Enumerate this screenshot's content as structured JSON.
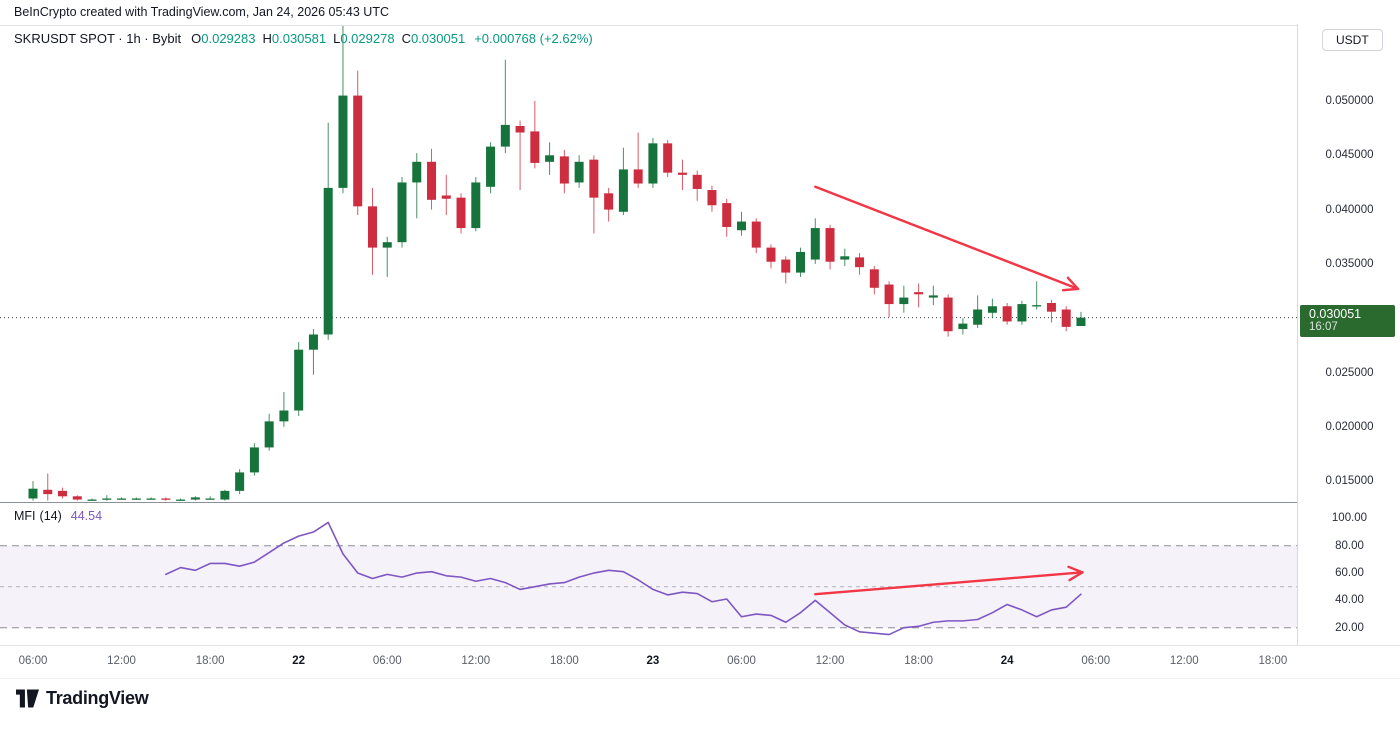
{
  "attribution": "BeInCrypto created with TradingView.com, Jan 24, 2026 05:43 UTC",
  "legend": {
    "symbol": "SKRUSDT SPOT · 1h · Bybit",
    "ohlc": [
      {
        "label": "O",
        "value": "0.029283"
      },
      {
        "label": "H",
        "value": "0.030581"
      },
      {
        "label": "L",
        "value": "0.029278"
      },
      {
        "label": "C",
        "value": "0.030051"
      }
    ],
    "change": "+0.000768 (+2.62%)"
  },
  "price_axis": {
    "currency": "USDT",
    "labels": [
      "0.050000",
      "0.045000",
      "0.040000",
      "0.035000",
      "0.025000",
      "0.020000",
      "0.015000"
    ],
    "label_values": [
      0.05,
      0.045,
      0.04,
      0.035,
      0.025,
      0.02,
      0.015
    ],
    "last_price_label": "0.030051",
    "countdown": "16:07"
  },
  "mfi_pane": {
    "title": "MFI",
    "params": "(14)",
    "value": "44.54",
    "axis_labels": [
      "100.00",
      "80.00",
      "60.00",
      "40.00",
      "20.00"
    ],
    "axis_values": [
      100,
      80,
      60,
      40,
      20
    ]
  },
  "time_axis": [
    {
      "label": "06:00",
      "bold": false
    },
    {
      "label": "12:00",
      "bold": false
    },
    {
      "label": "18:00",
      "bold": false
    },
    {
      "label": "22",
      "bold": true
    },
    {
      "label": "06:00",
      "bold": false
    },
    {
      "label": "12:00",
      "bold": false
    },
    {
      "label": "18:00",
      "bold": false
    },
    {
      "label": "23",
      "bold": true
    },
    {
      "label": "06:00",
      "bold": false
    },
    {
      "label": "12:00",
      "bold": false
    },
    {
      "label": "18:00",
      "bold": false
    },
    {
      "label": "24",
      "bold": true
    },
    {
      "label": "06:00",
      "bold": false
    },
    {
      "label": "12:00",
      "bold": false
    },
    {
      "label": "18:00",
      "bold": false
    }
  ],
  "footer_brand": "TradingView",
  "colors": {
    "up": "#15733b",
    "down": "#cd2d3e",
    "legend_value": "#089981",
    "mfi_line": "#7e57c2",
    "arrow": "#f23645",
    "price_tag_bg": "#2b6a2f",
    "text": "#131722"
  },
  "chart_data": {
    "type": "candlestick",
    "title": "SKRUSDT SPOT · 1h · Bybit",
    "interval_hours": 1,
    "visible_price_range": [
      0.01316,
      0.0574
    ],
    "y_axis_ticks": [
      0.015,
      0.02,
      0.025,
      0.03,
      0.035,
      0.04,
      0.045,
      0.05
    ],
    "last_price": 0.030051,
    "candles_ohlc": [
      [
        0.0134,
        0.015,
        0.0132,
        0.0143
      ],
      [
        0.0142,
        0.0157,
        0.0132,
        0.0138
      ],
      [
        0.0141,
        0.0144,
        0.0134,
        0.0136
      ],
      [
        0.0136,
        0.0137,
        0.0132,
        0.0133
      ],
      [
        0.0133,
        0.0134,
        0.0132,
        0.0133
      ],
      [
        0.0133,
        0.0137,
        0.0132,
        0.0134
      ],
      [
        0.0134,
        0.0135,
        0.0133,
        0.0134
      ],
      [
        0.0134,
        0.0135,
        0.0133,
        0.0134
      ],
      [
        0.0134,
        0.0135,
        0.0133,
        0.0134
      ],
      [
        0.0134,
        0.0135,
        0.0132,
        0.0133
      ],
      [
        0.0133,
        0.0134,
        0.0132,
        0.0133
      ],
      [
        0.0133,
        0.0136,
        0.0132,
        0.0135
      ],
      [
        0.0134,
        0.0136,
        0.0133,
        0.0134
      ],
      [
        0.0133,
        0.0142,
        0.0132,
        0.0141
      ],
      [
        0.0141,
        0.0161,
        0.0138,
        0.0158
      ],
      [
        0.0158,
        0.0185,
        0.0155,
        0.0181
      ],
      [
        0.0181,
        0.0212,
        0.0178,
        0.0205
      ],
      [
        0.0205,
        0.0232,
        0.02,
        0.0215
      ],
      [
        0.0215,
        0.0278,
        0.021,
        0.0271
      ],
      [
        0.0271,
        0.029,
        0.0248,
        0.0285
      ],
      [
        0.0285,
        0.048,
        0.028,
        0.042
      ],
      [
        0.042,
        0.057,
        0.0415,
        0.0505
      ],
      [
        0.0505,
        0.0528,
        0.0395,
        0.0403
      ],
      [
        0.0403,
        0.042,
        0.034,
        0.0365
      ],
      [
        0.0365,
        0.0375,
        0.0338,
        0.037
      ],
      [
        0.037,
        0.043,
        0.0365,
        0.0425
      ],
      [
        0.0425,
        0.0452,
        0.0392,
        0.0444
      ],
      [
        0.0444,
        0.0456,
        0.04,
        0.0409
      ],
      [
        0.0413,
        0.0432,
        0.0395,
        0.041
      ],
      [
        0.0411,
        0.0415,
        0.0378,
        0.0383
      ],
      [
        0.0383,
        0.043,
        0.038,
        0.0425
      ],
      [
        0.0421,
        0.0462,
        0.0415,
        0.0458
      ],
      [
        0.0458,
        0.0538,
        0.0452,
        0.0478
      ],
      [
        0.0477,
        0.0482,
        0.0418,
        0.0471
      ],
      [
        0.0472,
        0.05,
        0.0438,
        0.0443
      ],
      [
        0.0444,
        0.0462,
        0.0432,
        0.045
      ],
      [
        0.0449,
        0.0455,
        0.0415,
        0.0424
      ],
      [
        0.0425,
        0.045,
        0.042,
        0.0444
      ],
      [
        0.0446,
        0.045,
        0.0378,
        0.0411
      ],
      [
        0.0415,
        0.042,
        0.0389,
        0.04
      ],
      [
        0.0398,
        0.0457,
        0.0395,
        0.0437
      ],
      [
        0.0437,
        0.0471,
        0.042,
        0.0424
      ],
      [
        0.0424,
        0.0466,
        0.042,
        0.0461
      ],
      [
        0.0461,
        0.0464,
        0.043,
        0.0434
      ],
      [
        0.0434,
        0.0446,
        0.0418,
        0.0432
      ],
      [
        0.0432,
        0.0436,
        0.0408,
        0.0419
      ],
      [
        0.0418,
        0.0422,
        0.0398,
        0.0404
      ],
      [
        0.0406,
        0.041,
        0.0375,
        0.0384
      ],
      [
        0.0381,
        0.0398,
        0.0376,
        0.0389
      ],
      [
        0.0389,
        0.0392,
        0.036,
        0.0365
      ],
      [
        0.0365,
        0.0368,
        0.0346,
        0.0352
      ],
      [
        0.0354,
        0.0357,
        0.0332,
        0.0342
      ],
      [
        0.0342,
        0.0365,
        0.0338,
        0.0361
      ],
      [
        0.0354,
        0.0392,
        0.035,
        0.0383
      ],
      [
        0.0383,
        0.0386,
        0.0345,
        0.0352
      ],
      [
        0.0354,
        0.0364,
        0.0348,
        0.0357
      ],
      [
        0.0356,
        0.036,
        0.034,
        0.0347
      ],
      [
        0.0345,
        0.0348,
        0.0322,
        0.0328
      ],
      [
        0.0331,
        0.0334,
        0.0301,
        0.0313
      ],
      [
        0.0313,
        0.033,
        0.0305,
        0.0319
      ],
      [
        0.0324,
        0.0332,
        0.031,
        0.0322
      ],
      [
        0.0319,
        0.033,
        0.0312,
        0.0321
      ],
      [
        0.0319,
        0.0322,
        0.0283,
        0.0288
      ],
      [
        0.029,
        0.03,
        0.0285,
        0.0295
      ],
      [
        0.0294,
        0.0321,
        0.0291,
        0.0308
      ],
      [
        0.0305,
        0.0318,
        0.03,
        0.0311
      ],
      [
        0.0311,
        0.0314,
        0.0294,
        0.0297
      ],
      [
        0.0297,
        0.0316,
        0.0294,
        0.0313
      ],
      [
        0.0311,
        0.0334,
        0.0308,
        0.0312
      ],
      [
        0.0314,
        0.0317,
        0.0296,
        0.0306
      ],
      [
        0.0308,
        0.0311,
        0.0288,
        0.0292
      ],
      [
        0.029283,
        0.030581,
        0.029278,
        0.030051
      ]
    ],
    "mfi": {
      "period": 14,
      "current": 44.54,
      "overbought": 80,
      "mid": 50,
      "oversold": 20,
      "start_index": 9,
      "values": [
        59,
        64,
        62,
        67,
        67,
        65,
        68,
        75,
        82,
        87,
        90,
        97,
        74,
        60,
        56,
        59,
        57,
        60,
        61,
        58,
        57,
        54,
        56,
        53,
        48,
        50,
        52,
        53,
        57,
        60,
        62,
        61,
        55,
        48,
        44,
        46,
        45,
        39,
        41,
        28,
        30,
        29,
        24,
        31,
        40,
        31,
        22,
        17,
        16,
        15,
        20,
        21,
        24,
        25,
        25,
        26,
        31,
        37,
        33,
        28,
        33,
        35,
        44.54
      ]
    },
    "annotations": [
      {
        "type": "arrow",
        "pane": "price",
        "from_x_index": 53,
        "from_price": 0.0421,
        "to_x_index": 70.8,
        "to_price": 0.0327
      },
      {
        "type": "arrow",
        "pane": "mfi",
        "from_x_index": 53,
        "from_value": 44.5,
        "to_x_index": 71.1,
        "to_value": 60.5
      }
    ]
  }
}
